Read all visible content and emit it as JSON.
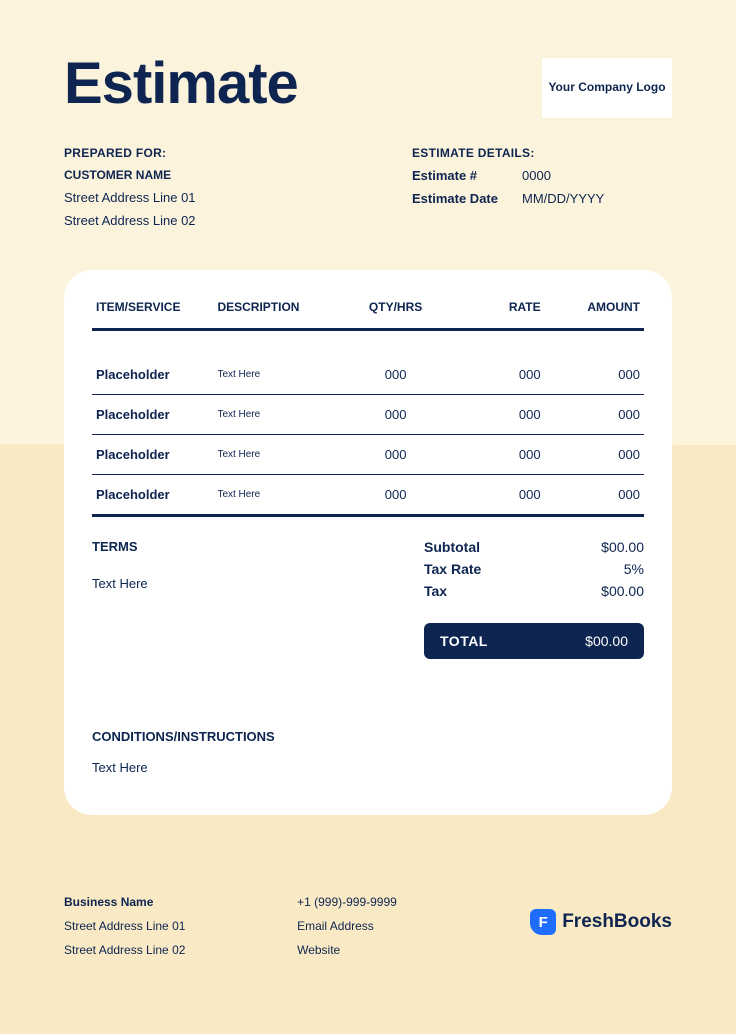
{
  "colors": {
    "primary": "#0d2550",
    "bg_upper": "#fcf3dc",
    "bg_lower": "#f9e9c5",
    "card_bg": "#ffffff",
    "accent_blue": "#1f6dff"
  },
  "title": "Estimate",
  "logo_placeholder": "Your Company Logo",
  "prepared_for": {
    "label": "PREPARED FOR:",
    "customer_name": "CUSTOMER NAME",
    "address1": "Street Address Line 01",
    "address2": "Street Address Line 02"
  },
  "details": {
    "label": "ESTIMATE DETAILS:",
    "number_label": "Estimate #",
    "number_value": "0000",
    "date_label": "Estimate Date",
    "date_value": "MM/DD/YYYY"
  },
  "table": {
    "headers": {
      "item": "ITEM/SERVICE",
      "desc": "DESCRIPTION",
      "qty": "QTY/HRS",
      "rate": "RATE",
      "amount": "AMOUNT"
    },
    "rows": [
      {
        "item": "Placeholder",
        "desc": "Text Here",
        "qty": "000",
        "rate": "000",
        "amount": "000"
      },
      {
        "item": "Placeholder",
        "desc": "Text Here",
        "qty": "000",
        "rate": "000",
        "amount": "000"
      },
      {
        "item": "Placeholder",
        "desc": "Text Here",
        "qty": "000",
        "rate": "000",
        "amount": "000"
      },
      {
        "item": "Placeholder",
        "desc": "Text Here",
        "qty": "000",
        "rate": "000",
        "amount": "000"
      }
    ]
  },
  "terms": {
    "label": "TERMS",
    "text": "Text Here"
  },
  "totals": {
    "subtotal_label": "Subtotal",
    "subtotal_value": "$00.00",
    "taxrate_label": "Tax Rate",
    "taxrate_value": "5%",
    "tax_label": "Tax",
    "tax_value": "$00.00",
    "total_label": "TOTAL",
    "total_value": "$00.00"
  },
  "conditions": {
    "label": "CONDITIONS/INSTRUCTIONS",
    "text": "Text Here"
  },
  "footer": {
    "business_name": "Business Name",
    "address1": "Street Address Line 01",
    "address2": "Street Address Line 02",
    "phone": "+1 (999)-999-9999",
    "email": "Email Address",
    "website": "Website"
  },
  "brand": {
    "icon_letter": "F",
    "name": "FreshBooks"
  }
}
